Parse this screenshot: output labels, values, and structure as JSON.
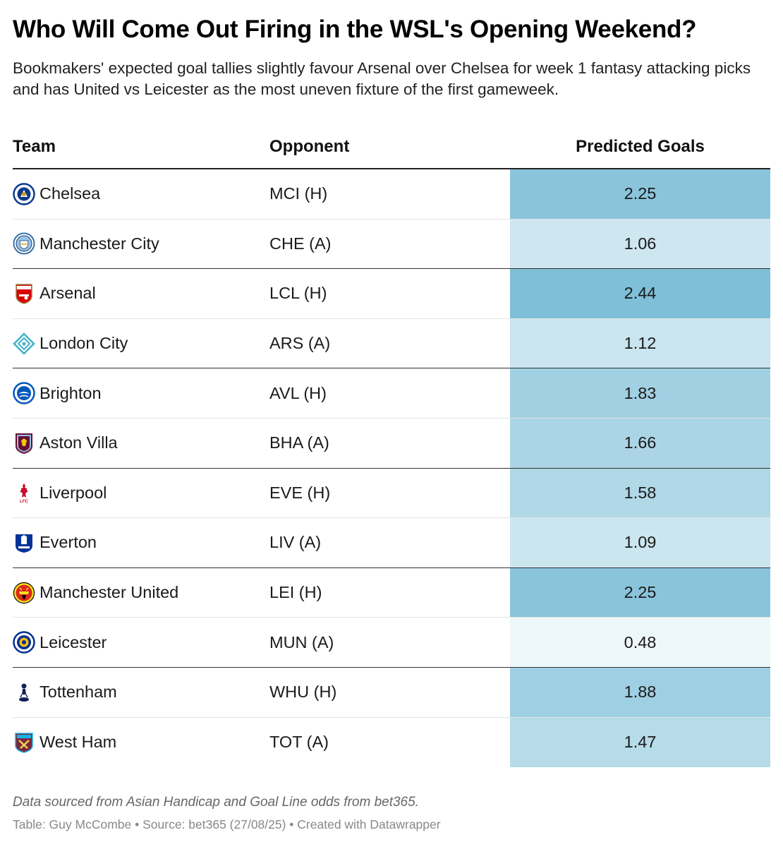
{
  "title": "Who Will Come Out Firing in the WSL's Opening Weekend?",
  "subtitle": "Bookmakers' expected goal tallies slightly favour Arsenal over Chelsea for week 1 fantasy attacking picks and has United vs Leicester as the most uneven fixture of the first gameweek.",
  "chart_data": {
    "type": "table",
    "columns": [
      "Team",
      "Opponent",
      "Predicted Goals"
    ],
    "color_scale": {
      "low": "#eef7fa",
      "high": "#7fbfd8"
    },
    "rows": [
      {
        "team": "Chelsea",
        "opponent": "MCI (H)",
        "goals": 2.25,
        "goals_text": "2.25",
        "logo": "chelsea-crest-icon"
      },
      {
        "team": "Manchester City",
        "opponent": "CHE (A)",
        "goals": 1.06,
        "goals_text": "1.06",
        "logo": "manchester-city-crest-icon"
      },
      {
        "team": "Arsenal",
        "opponent": "LCL (H)",
        "goals": 2.44,
        "goals_text": "2.44",
        "logo": "arsenal-crest-icon"
      },
      {
        "team": "London City",
        "opponent": "ARS (A)",
        "goals": 1.12,
        "goals_text": "1.12",
        "logo": "london-city-crest-icon"
      },
      {
        "team": "Brighton",
        "opponent": "AVL (H)",
        "goals": 1.83,
        "goals_text": "1.83",
        "logo": "brighton-crest-icon"
      },
      {
        "team": "Aston Villa",
        "opponent": "BHA (A)",
        "goals": 1.66,
        "goals_text": "1.66",
        "logo": "aston-villa-crest-icon"
      },
      {
        "team": "Liverpool",
        "opponent": "EVE (H)",
        "goals": 1.58,
        "goals_text": "1.58",
        "logo": "liverpool-crest-icon"
      },
      {
        "team": "Everton",
        "opponent": "LIV (A)",
        "goals": 1.09,
        "goals_text": "1.09",
        "logo": "everton-crest-icon"
      },
      {
        "team": "Manchester United",
        "opponent": "LEI (H)",
        "goals": 2.25,
        "goals_text": "2.25",
        "logo": "manchester-united-crest-icon"
      },
      {
        "team": "Leicester",
        "opponent": "MUN (A)",
        "goals": 0.48,
        "goals_text": "0.48",
        "logo": "leicester-crest-icon"
      },
      {
        "team": "Tottenham",
        "opponent": "WHU (H)",
        "goals": 1.88,
        "goals_text": "1.88",
        "logo": "tottenham-crest-icon"
      },
      {
        "team": "West Ham",
        "opponent": "TOT (A)",
        "goals": 1.47,
        "goals_text": "1.47",
        "logo": "west-ham-crest-icon"
      }
    ]
  },
  "notes": "Data sourced from Asian Handicap and Goal Line odds from bet365.",
  "credit": "Table: Guy McCombe • Source: bet365 (27/08/25) • Created with Datawrapper"
}
